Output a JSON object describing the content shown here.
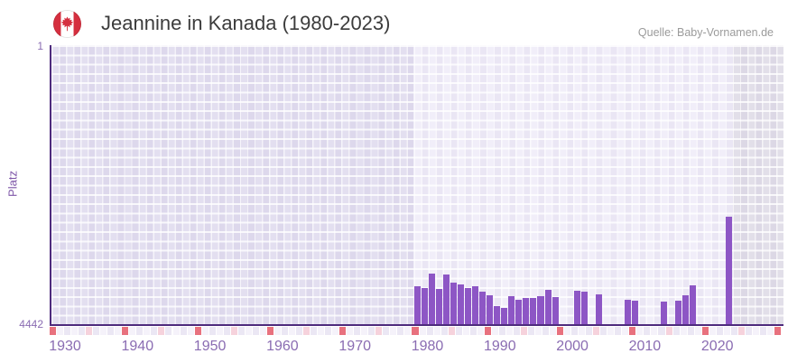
{
  "header": {
    "title": "Jeannine in Kanada (1980-2023)",
    "source": "Quelle: Baby-Vornamen.de",
    "flag_icon": "canada-flag-icon"
  },
  "colors": {
    "bar": "#8d56c5",
    "axis_line": "#4e2b7d",
    "axis_tick_label": "#8a6cb2",
    "y_axis_title": "#7e56a8",
    "band_outside_left": "#e3dff0",
    "band_highlight": "#f1eef9",
    "band_outside_right": "#e2dfe9",
    "strip_red": "#e8717e",
    "strip_pink": "#f6d2dc",
    "strip_even": "#ebe7f4",
    "strip_odd": "#f5f2fa",
    "title_text": "#3c3c3c",
    "source_text": "#9b9b9b"
  },
  "chart_data": {
    "type": "bar",
    "title": "Jeannine in Kanada (1980-2023)",
    "xlabel": "",
    "ylabel": "Platz",
    "y_inverted": true,
    "ylim": [
      1,
      4442
    ],
    "y_tick_labels": [
      "1",
      "4442"
    ],
    "x_years_range": [
      1930,
      2030
    ],
    "x_tick_labels": [
      "1930",
      "1940",
      "1950",
      "1960",
      "1970",
      "1980",
      "1990",
      "2000",
      "2010",
      "2020"
    ],
    "highlight_band_years": [
      1980,
      2023
    ],
    "decade_strip": {
      "red_interval_years": 10,
      "pink_interval_years": 5
    },
    "legend": "none",
    "series": [
      {
        "name": "Platz",
        "points": [
          {
            "year": 1980,
            "rank": 3834
          },
          {
            "year": 1981,
            "rank": 3862
          },
          {
            "year": 1982,
            "rank": 3642
          },
          {
            "year": 1983,
            "rank": 3881
          },
          {
            "year": 1984,
            "rank": 3648
          },
          {
            "year": 1985,
            "rank": 3786
          },
          {
            "year": 1986,
            "rank": 3805
          },
          {
            "year": 1987,
            "rank": 3860
          },
          {
            "year": 1988,
            "rank": 3843
          },
          {
            "year": 1989,
            "rank": 3920
          },
          {
            "year": 1990,
            "rank": 3982
          },
          {
            "year": 1991,
            "rank": 4159
          },
          {
            "year": 1992,
            "rank": 4188
          },
          {
            "year": 1993,
            "rank": 4001
          },
          {
            "year": 1994,
            "rank": 4054
          },
          {
            "year": 1995,
            "rank": 4030
          },
          {
            "year": 1996,
            "rank": 4031
          },
          {
            "year": 1997,
            "rank": 3992
          },
          {
            "year": 1998,
            "rank": 3896
          },
          {
            "year": 1999,
            "rank": 4006
          },
          {
            "year": 2002,
            "rank": 3910
          },
          {
            "year": 2003,
            "rank": 3925
          },
          {
            "year": 2005,
            "rank": 3968
          },
          {
            "year": 2009,
            "rank": 4054
          },
          {
            "year": 2010,
            "rank": 4068
          },
          {
            "year": 2014,
            "rank": 4083
          },
          {
            "year": 2016,
            "rank": 4073
          },
          {
            "year": 2017,
            "rank": 3978
          },
          {
            "year": 2018,
            "rank": 3828
          },
          {
            "year": 2023,
            "rank": 2732
          }
        ]
      }
    ]
  }
}
